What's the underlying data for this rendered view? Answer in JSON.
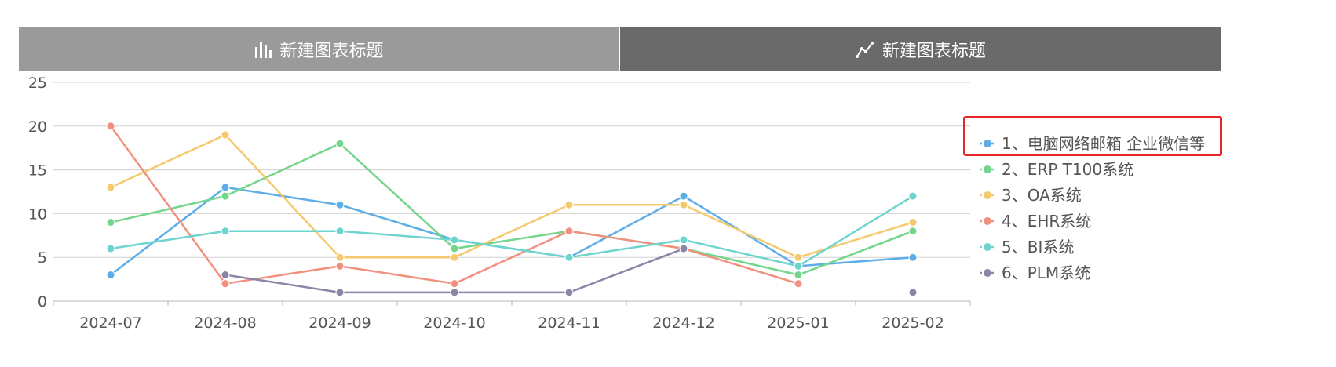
{
  "tabs": [
    {
      "label": "新建图表标题",
      "icon": "bar-chart-icon"
    },
    {
      "label": "新建图表标题",
      "icon": "line-chart-icon"
    }
  ],
  "colors": {
    "tab_inactive": "#9a9a9a",
    "tab_active": "#6a6a6a",
    "grid": "#d0d0d0",
    "highlight": "#e8262a"
  },
  "chart_data": {
    "type": "line",
    "categories": [
      "2024-07",
      "2024-08",
      "2024-09",
      "2024-10",
      "2024-11",
      "2024-12",
      "2025-01",
      "2025-02"
    ],
    "ylim": [
      0,
      25
    ],
    "yticks": [
      0,
      5,
      10,
      15,
      20,
      25
    ],
    "grid": true,
    "legend_position": "right",
    "series": [
      {
        "name": "1、电脑网络邮箱 企业微信等",
        "color": "#5dade8",
        "values": [
          3,
          13,
          11,
          7,
          5,
          12,
          4,
          5
        ]
      },
      {
        "name": "2、ERP T100系统",
        "color": "#73d68a",
        "values": [
          9,
          12,
          18,
          6,
          8,
          6,
          3,
          8
        ]
      },
      {
        "name": "3、OA系统",
        "color": "#f5c96e",
        "values": [
          13,
          19,
          5,
          5,
          11,
          11,
          5,
          9
        ]
      },
      {
        "name": "4、EHR系统",
        "color": "#f2907e",
        "values": [
          20,
          2,
          4,
          2,
          8,
          6,
          2,
          null
        ]
      },
      {
        "name": "5、BI系统",
        "color": "#6dd5cd",
        "values": [
          6,
          8,
          8,
          7,
          5,
          7,
          4,
          12
        ]
      },
      {
        "name": "6、PLM系统",
        "color": "#8a86a8",
        "values": [
          null,
          3,
          1,
          1,
          1,
          6,
          null,
          1
        ]
      }
    ]
  }
}
